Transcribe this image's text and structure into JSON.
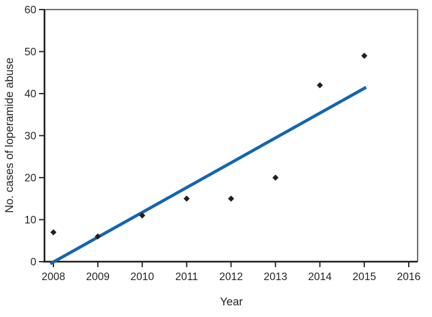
{
  "figure": {
    "background": "#ffffff"
  },
  "chart_data": {
    "type": "scatter",
    "title": "",
    "xlabel": "Year",
    "ylabel": "No. cases of loperamide abuse",
    "x": [
      2008,
      2009,
      2010,
      2011,
      2012,
      2013,
      2014,
      2015
    ],
    "values": [
      7,
      6,
      11,
      15,
      15,
      20,
      42,
      49
    ],
    "xlim": [
      2008,
      2016
    ],
    "ylim": [
      0,
      60
    ],
    "xticks": [
      2008,
      2009,
      2010,
      2011,
      2012,
      2013,
      2014,
      2015,
      2016
    ],
    "yticks": [
      0,
      10,
      20,
      30,
      40,
      50,
      60
    ],
    "grid": false,
    "legend": "none",
    "trend_line": {
      "x1": 2007.93,
      "y1": -0.5,
      "x2": 2015.04,
      "y2": 41.5,
      "color": "#1565ae",
      "width": 4.5
    },
    "marker": {
      "shape": "diamond",
      "color": "#231f20",
      "size": 9
    },
    "axis_color": "#231f20",
    "text_color": "#231f20",
    "tick_font_size": 15.5
  }
}
